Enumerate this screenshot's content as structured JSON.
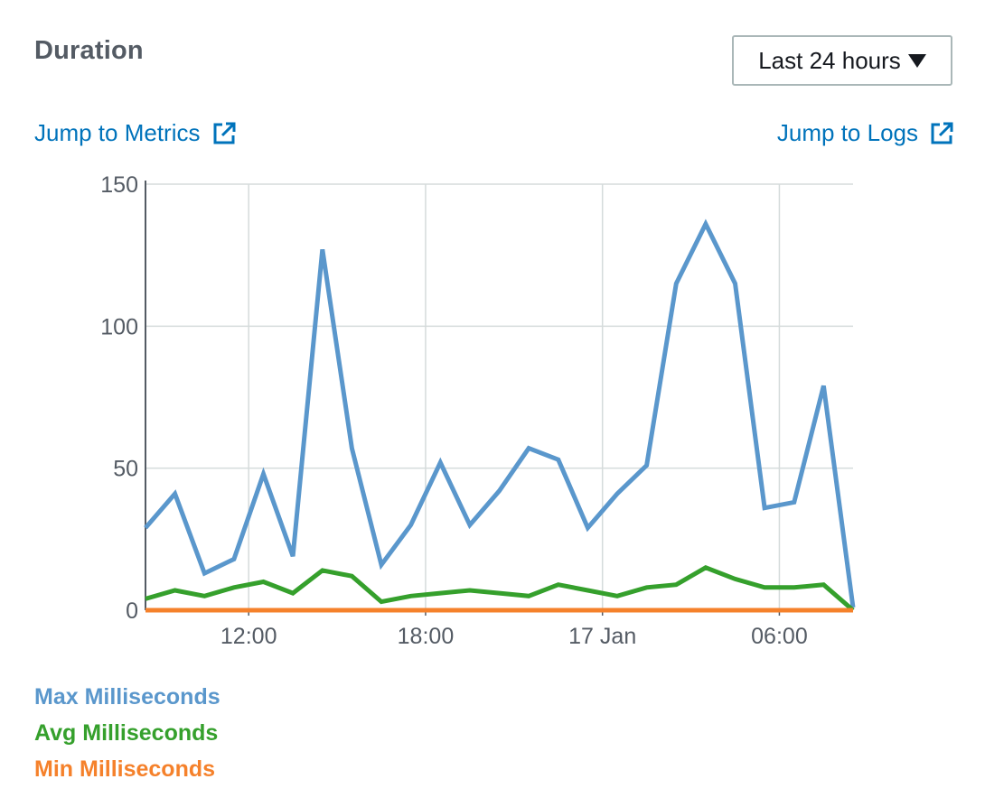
{
  "header": {
    "title": "Duration",
    "range_label": "Last 24 hours"
  },
  "links": {
    "metrics": "Jump to Metrics",
    "logs": "Jump to Logs",
    "icon": "external-link-icon"
  },
  "chart_data": {
    "type": "line",
    "title": "Duration",
    "xlabel": "",
    "ylabel": "",
    "x": [
      0,
      1,
      2,
      3,
      4,
      5,
      6,
      7,
      8,
      9,
      10,
      11,
      12,
      13,
      14,
      15,
      16,
      17,
      18,
      19,
      20,
      21,
      22,
      23,
      24
    ],
    "x_ticks": [
      {
        "x": 3.5,
        "label": "12:00"
      },
      {
        "x": 9.5,
        "label": "18:00"
      },
      {
        "x": 15.5,
        "label": "17 Jan"
      },
      {
        "x": 21.5,
        "label": "06:00"
      }
    ],
    "y_ticks": [
      0,
      50,
      100,
      150
    ],
    "xlim": [
      0,
      24
    ],
    "ylim": [
      0,
      150
    ],
    "grid": true,
    "legend_position": "bottom-left",
    "series": [
      {
        "name": "Max Milliseconds",
        "color": "#5a97cc",
        "values": [
          29,
          41,
          13,
          18,
          48,
          19,
          127,
          57,
          16,
          30,
          52,
          30,
          42,
          57,
          53,
          29,
          41,
          51,
          115,
          136,
          115,
          36,
          38,
          79,
          1
        ]
      },
      {
        "name": "Avg Milliseconds",
        "color": "#35a02c",
        "values": [
          4,
          7,
          5,
          8,
          10,
          6,
          14,
          12,
          3,
          5,
          6,
          7,
          6,
          5,
          9,
          7,
          5,
          8,
          9,
          15,
          11,
          8,
          8,
          9,
          0
        ]
      },
      {
        "name": "Min Milliseconds",
        "color": "#f5812b",
        "values": [
          0,
          0,
          0,
          0,
          0,
          0,
          0,
          0,
          0,
          0,
          0,
          0,
          0,
          0,
          0,
          0,
          0,
          0,
          0,
          0,
          0,
          0,
          0,
          0,
          0
        ]
      }
    ]
  }
}
